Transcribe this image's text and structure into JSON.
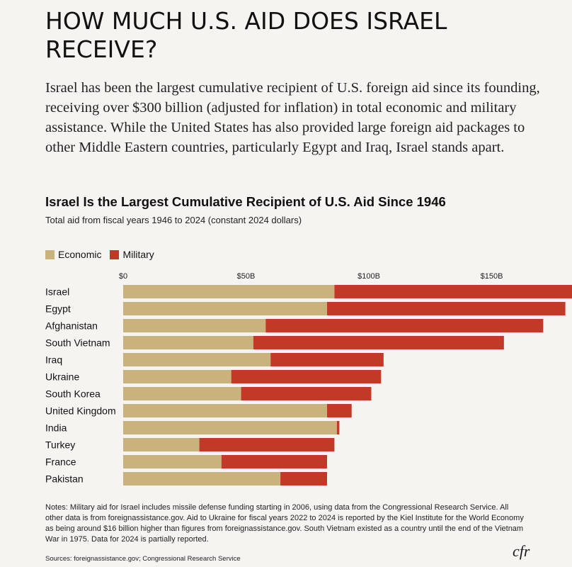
{
  "headline": "HOW MUCH U.S. AID DOES ISRAEL RECEIVE?",
  "lede": "Israel has been the largest cumulative recipient of U.S. foreign aid since its founding, receiving over $300 billion (adjusted for inflation) in total economic and military assistance. While the United States has also provided large foreign aid packages to other Middle Eastern countries, particularly Egypt and Iraq, Israel stands apart.",
  "notes": "Notes: Military aid for Israel includes missile defense funding starting in 2006, using data from the Congressional Research Service. All other data is from foreignassistance.gov. Aid to Ukraine for fiscal years 2022 to 2024 is reported by the Kiel Institute for the World Economy as being around $16 billion higher than figures from foreignassistance.gov. South Vietnam existed as a country until the end of the Vietnam War in 1975. Data for 2024 is partially reported.",
  "sources": "Sources: foreignassistance.gov; Congressional Research Service",
  "logo": "cfr",
  "colors": {
    "economic": "#c9b27c",
    "military": "#c13a27"
  },
  "chart_data": {
    "type": "bar",
    "orientation": "horizontal",
    "stacked": true,
    "title": "Israel Is the Largest Cumulative Recipient of U.S. Aid Since 1946",
    "subtitle": "Total aid from fiscal years 1946 to 2024 (constant 2024 dollars)",
    "xlim": [
      0,
      330
    ],
    "ticks": [
      0,
      50,
      100,
      150,
      200,
      250,
      300
    ],
    "tick_labels": [
      "$0",
      "$50B",
      "$100B",
      "$150B",
      "$200B",
      "$250B",
      "$300B"
    ],
    "axis_position": "top",
    "legend_position": "top-left",
    "grid": false,
    "categories": [
      "Israel",
      "Egypt",
      "Afghanistan",
      "South Vietnam",
      "Iraq",
      "Ukraine",
      "South Korea",
      "United Kingdom",
      "India",
      "Turkey",
      "France",
      "Pakistan"
    ],
    "series": [
      {
        "name": "Economic",
        "values": [
          86,
          83,
          58,
          53,
          60,
          44,
          48,
          83,
          87,
          31,
          40,
          64
        ]
      },
      {
        "name": "Military",
        "values": [
          244,
          97,
          113,
          102,
          46,
          61,
          53,
          10,
          1,
          55,
          43,
          19
        ]
      }
    ]
  }
}
